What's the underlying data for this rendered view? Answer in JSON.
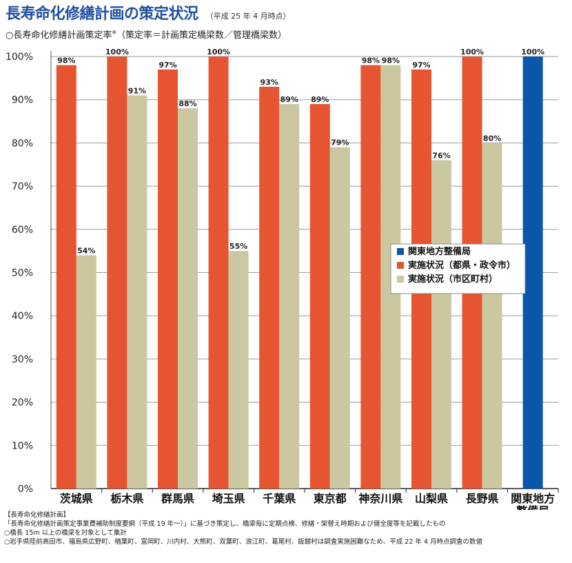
{
  "header": {
    "title": "長寿命化修繕計画の策定状況",
    "title_note": "（平成 25 年 4 月時点）",
    "subtitle": "○長寿命化修繕計画策定率",
    "subtitle_mark": "※",
    "subtitle_suffix": "（策定率＝計画策定橋梁数／管理橋梁数）"
  },
  "chart_data": {
    "type": "bar",
    "categories": [
      "茨城県",
      "栃木県",
      "群馬県",
      "埼玉県",
      "千葉県",
      "東京都",
      "神奈川県",
      "山梨県",
      "長野県",
      "関東地方\n整備局"
    ],
    "ylim": [
      0,
      100
    ],
    "y_ticks": [
      "0%",
      "10%",
      "20%",
      "30%",
      "40%",
      "50%",
      "60%",
      "70%",
      "80%",
      "90%",
      "100%"
    ],
    "grid": true,
    "legend_position": "right-middle",
    "series": [
      {
        "name": "関東地方整備局",
        "color": "#0a56a8",
        "values": [
          null,
          null,
          null,
          null,
          null,
          null,
          null,
          null,
          null,
          100
        ],
        "labels": [
          "",
          "",
          "",
          "",
          "",
          "",
          "",
          "",
          "",
          "100%"
        ]
      },
      {
        "name": "実施状況（都県・政令市）",
        "color": "#e65532",
        "values": [
          98,
          100,
          97,
          100,
          93,
          89,
          98,
          97,
          100,
          null
        ],
        "labels": [
          "98%",
          "100%",
          "97%",
          "100%",
          "93%",
          "89%",
          "98%",
          "97%",
          "100%",
          ""
        ]
      },
      {
        "name": "実施状況（市区町村）",
        "color": "#cbc7a0",
        "values": [
          54,
          91,
          88,
          55,
          89,
          79,
          98,
          76,
          80,
          null
        ],
        "labels": [
          "54%",
          "91%",
          "88%",
          "55%",
          "89%",
          "79%",
          "98%",
          "76%",
          "80%",
          ""
        ]
      }
    ]
  },
  "notes": {
    "heading": "【長寿命化修繕計画】",
    "line1": "「長寿命化修繕計画策定事業費補助制度要綱（平成 19 年～）」に基づき策定し、橋梁毎に定期点検、修繕・架替え時期および健全度等を記載したもの",
    "line2": "○橋長 15m 以上の橋梁を対象として集計",
    "line3": "○岩手県陸前高田市、福島県広野町、楢葉町、富岡町、川内村、大熊町、双葉町、浪江町、葛尾村、飯舘村は調査実施困難なため、平成 22 年 4 月時点調査の数値"
  }
}
